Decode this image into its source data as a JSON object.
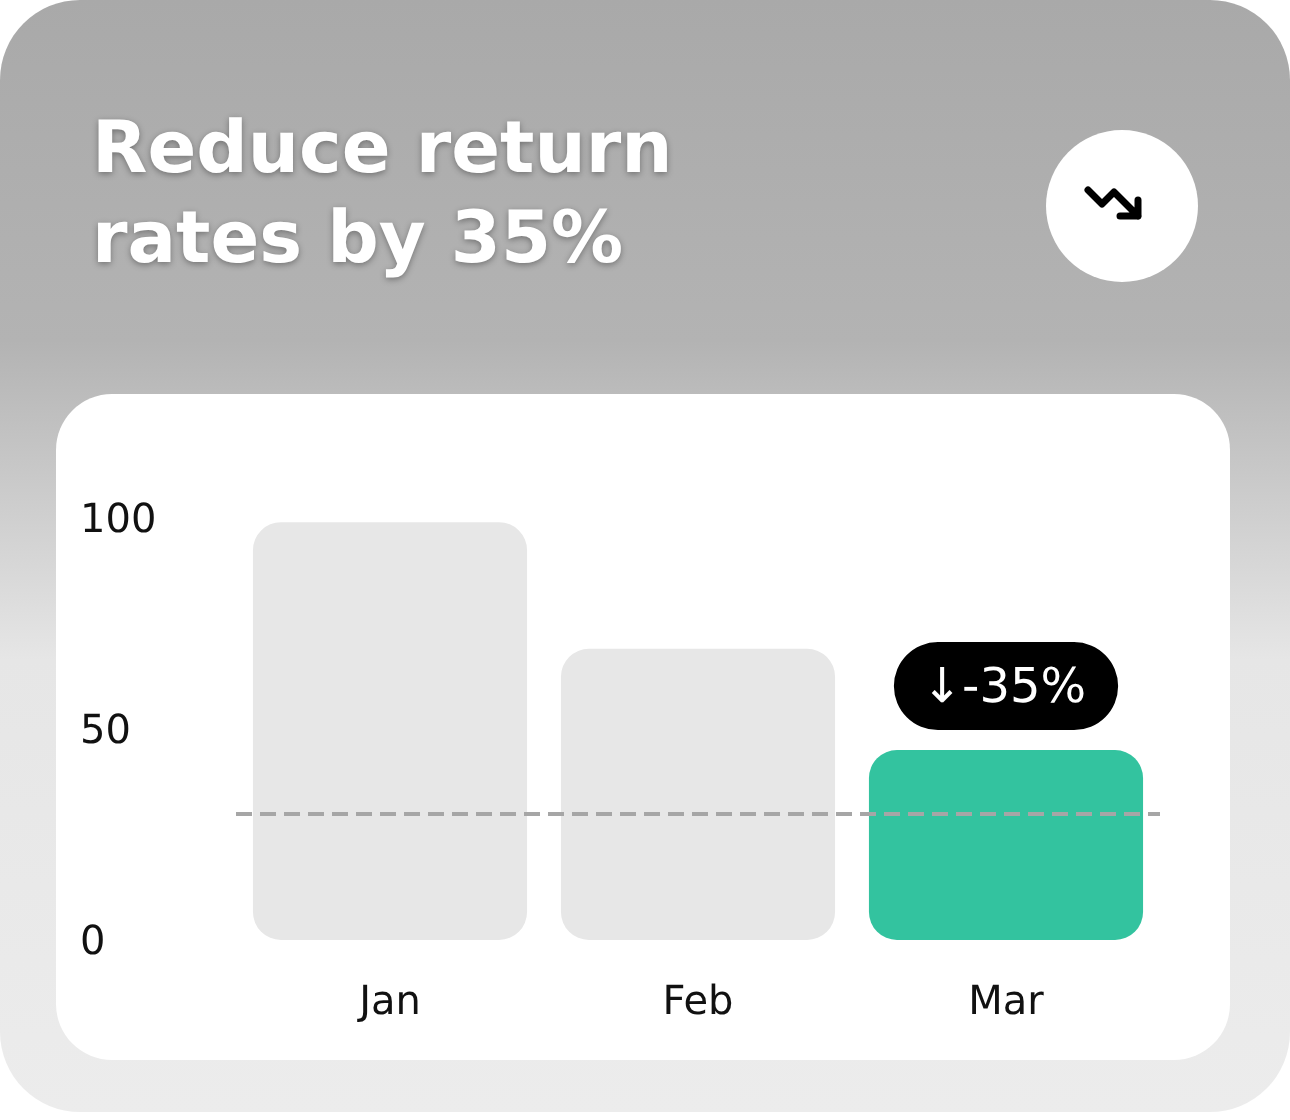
{
  "chart_data": {
    "type": "bar",
    "title": "Reduce return rates by 35%",
    "categories": [
      "Jan",
      "Feb",
      "Mar"
    ],
    "values": [
      99,
      69,
      45
    ],
    "colors": [
      "#e7e7e7",
      "#e7e7e7",
      "#33c39f"
    ],
    "ylim": [
      0,
      100
    ],
    "yticks": [
      0,
      50,
      100
    ],
    "grid": false,
    "ref_lines": [
      {
        "axis": "y",
        "value": 30,
        "color": "#a6a6a6",
        "line_style": "dashed"
      }
    ],
    "annotations": [
      {
        "text": "↓-35%",
        "x": "Mar",
        "y": 45
      }
    ]
  }
}
